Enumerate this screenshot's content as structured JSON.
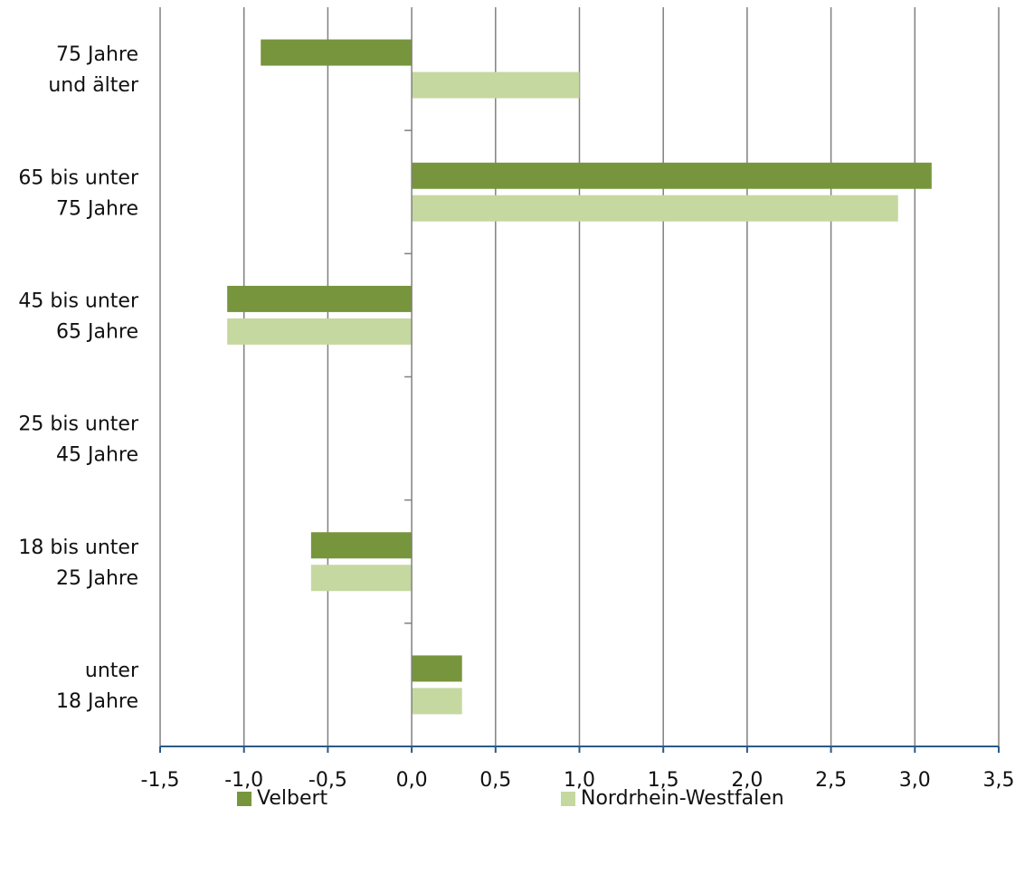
{
  "chart_data": {
    "type": "bar",
    "orientation": "horizontal",
    "categories": [
      "75 Jahre und älter",
      "65 bis unter 75 Jahre",
      "45 bis unter 65 Jahre",
      "25 bis unter 45 Jahre",
      "18 bis unter 25 Jahre",
      "unter 18 Jahre"
    ],
    "category_lines": [
      [
        "75 Jahre",
        "und älter"
      ],
      [
        "65 bis unter",
        "75 Jahre"
      ],
      [
        "45 bis unter",
        "65 Jahre"
      ],
      [
        "25 bis unter",
        "45 Jahre"
      ],
      [
        "18 bis unter",
        "25 Jahre"
      ],
      [
        "unter",
        "18 Jahre"
      ]
    ],
    "series": [
      {
        "name": "Velbert",
        "color": "#77953d",
        "values": [
          -0.9,
          3.1,
          -1.1,
          0.0,
          -0.6,
          0.3
        ]
      },
      {
        "name": "Nordrhein-Westfalen",
        "color": "#c5d8a0",
        "values": [
          1.0,
          2.9,
          -1.1,
          0.0,
          -0.6,
          0.3
        ]
      }
    ],
    "xlim": [
      -1.5,
      3.5
    ],
    "xticks": [
      -1.5,
      -1.0,
      -0.5,
      0.0,
      0.5,
      1.0,
      1.5,
      2.0,
      2.5,
      3.0,
      3.5
    ],
    "xtick_labels": [
      "-1,5",
      "-1,0",
      "-0,5",
      "0,0",
      "0,5",
      "1,0",
      "1,5",
      "2,0",
      "2,5",
      "3,0",
      "3,5"
    ],
    "grid": "vertical",
    "grid_color": "#808080",
    "axis_color": "#2a5a8a",
    "legend_position": "bottom"
  }
}
